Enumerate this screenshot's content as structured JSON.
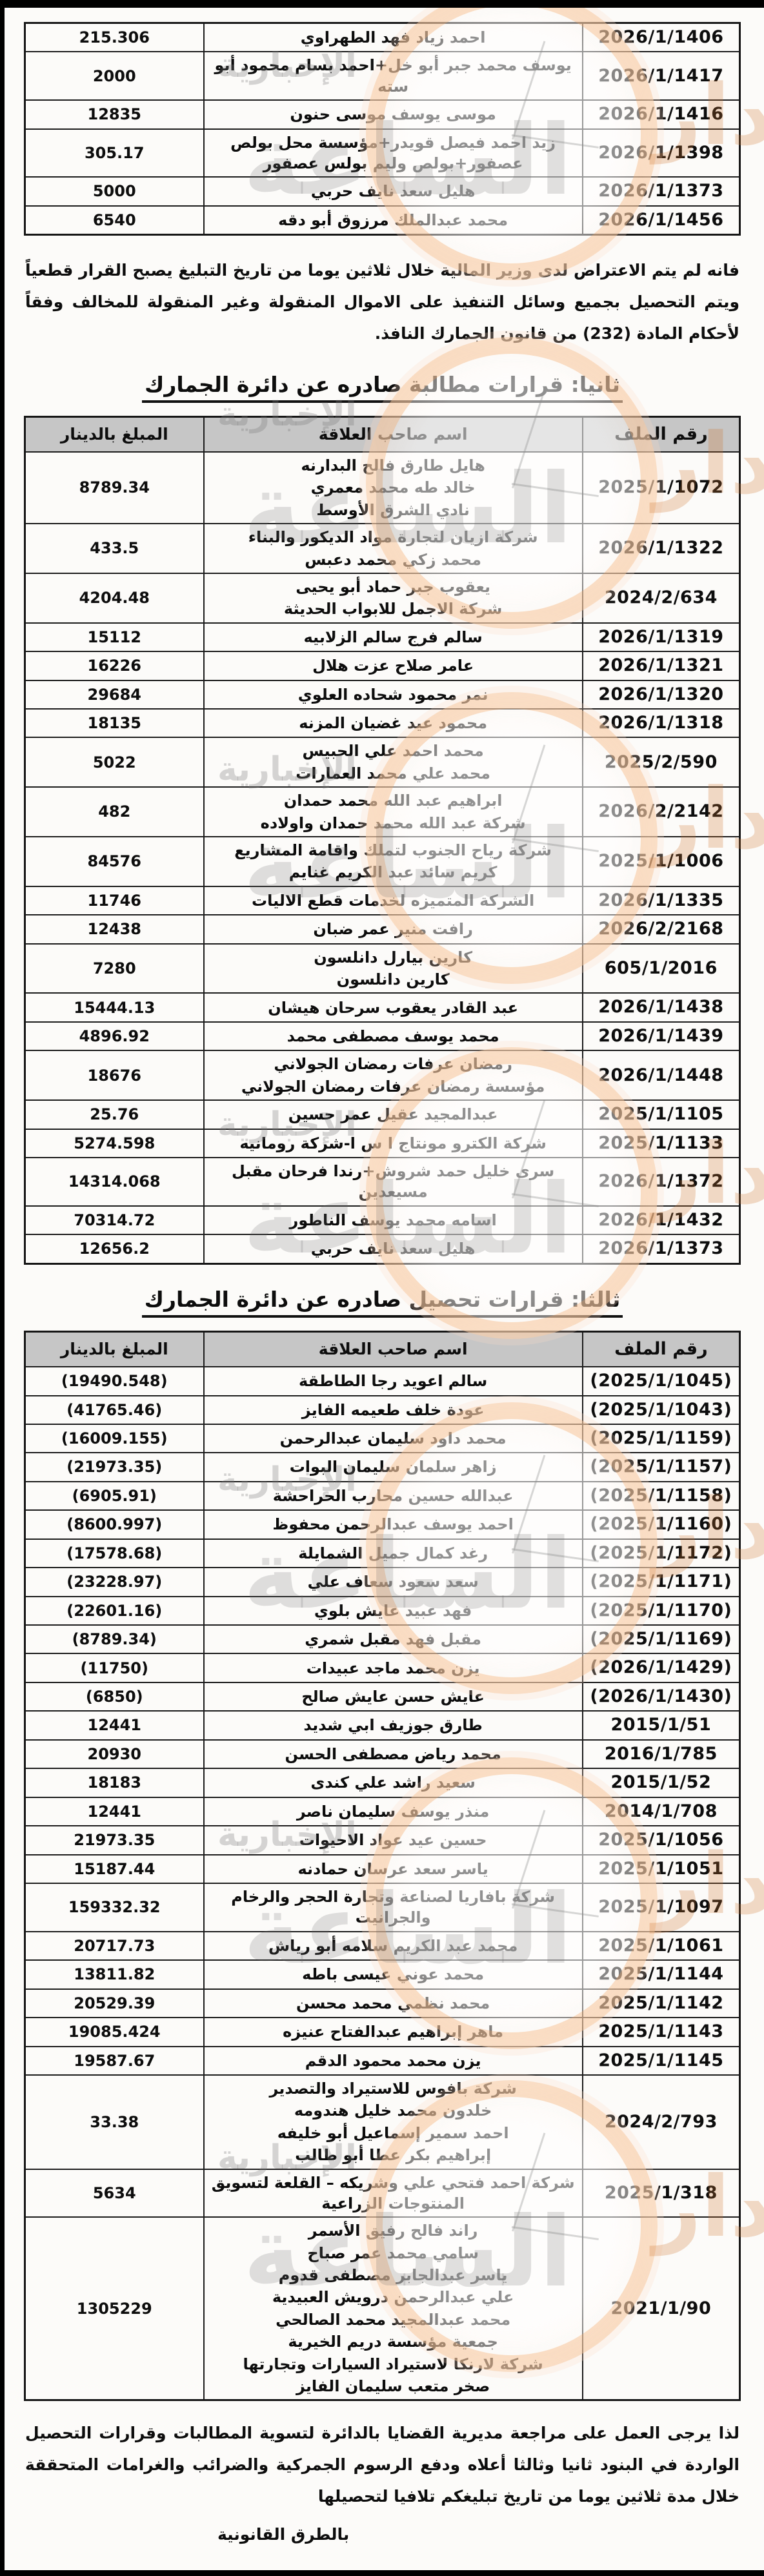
{
  "document": {
    "table_headers": {
      "file": "رقم الملف",
      "name": "اسم صاحب العلاقة",
      "amount": "المبلغ بالدينار"
    },
    "section1": {
      "rows": [
        {
          "amount": "215.306",
          "names": [
            "احمد زياد فهد الطهراوي"
          ],
          "file": "2026/1/1406"
        },
        {
          "amount": "2000",
          "names": [
            "يوسف محمد جبر أبو خل+احمد بسام محمود أبو سته"
          ],
          "file": "2026/1/1417"
        },
        {
          "amount": "12835",
          "names": [
            "موسى يوسف موسى حنون"
          ],
          "file": "2026/1/1416"
        },
        {
          "amount": "305.17",
          "names": [
            "زيد احمد فيصل قويدر+مؤسسة محل بولص عصفور+بولص وليم بولس عصفور"
          ],
          "file": "2026/1/1398"
        },
        {
          "amount": "5000",
          "names": [
            "هليل سعد نايف حربي"
          ],
          "file": "2026/1/1373"
        },
        {
          "amount": "6540",
          "names": [
            "محمد عبدالملك مرزوق أبو دقه"
          ],
          "file": "2026/1/1456"
        }
      ]
    },
    "paragraph_decision": "فانه لم يتم الاعتراض لدى وزير المالية خلال ثلاثين يوما من تاريخ التبليغ يصبح القرار قطعياً ويتم التحصيل بجميع وسائل التنفيذ على الاموال المنقولة وغير المنقولة للمخالف وفقاً لأحكام المادة (232) من قانون الجمارك النافذ.",
    "section2": {
      "heading": "ثانيا: قرارات مطالبة صادره عن دائرة الجمارك",
      "rows": [
        {
          "amount": "8789.34",
          "names": [
            "هايل طارق فالح البدارنه",
            "خالد طه محمد معمري",
            "نادي الشرق الأوسط"
          ],
          "file": "2025/1/1072"
        },
        {
          "amount": "433.5",
          "names": [
            "شركة ازيان لتجارة مواد الديكور والبناء",
            "محمد زكي محمد دعبس"
          ],
          "file": "2026/1/1322"
        },
        {
          "amount": "4204.48",
          "names": [
            "يعقوب جبر حماد أبو يحيى",
            "شركة الاجمل للابواب الحديثة"
          ],
          "file": "2024/2/634"
        },
        {
          "amount": "15112",
          "names": [
            "سالم فرج سالم الزلابيه"
          ],
          "file": "2026/1/1319"
        },
        {
          "amount": "16226",
          "names": [
            "عامر صلاح عزت هلال"
          ],
          "file": "2026/1/1321"
        },
        {
          "amount": "29684",
          "names": [
            "نمر محمود شحاده العلوي"
          ],
          "file": "2026/1/1320"
        },
        {
          "amount": "18135",
          "names": [
            "محمود عيد غضيان المزنه"
          ],
          "file": "2026/1/1318"
        },
        {
          "amount": "5022",
          "names": [
            "محمد احمد علي الحبيس",
            "محمد علي محمد العمارات"
          ],
          "file": "2025/2/590"
        },
        {
          "amount": "482",
          "names": [
            "ابراهيم عبد الله محمد حمدان",
            "شركة عبد الله محمد حمدان واولاده"
          ],
          "file": "2026/2/2142"
        },
        {
          "amount": "84576",
          "names": [
            "شركة رياح الجنوب لتملك واقامة المشاريع",
            "كريم سائد عبد الكريم غنايم"
          ],
          "file": "2025/1/1006"
        },
        {
          "amount": "11746",
          "names": [
            "الشركة المتميزه لخدمات قطع الاليات"
          ],
          "file": "2026/1/1335"
        },
        {
          "amount": "12438",
          "names": [
            "رافت منير عمر ضبان"
          ],
          "file": "2026/2/2168"
        },
        {
          "amount": "7280",
          "names": [
            "كارين بيارل دانلسون",
            "كارين دانلسون"
          ],
          "file": "605/1/2016"
        },
        {
          "amount": "15444.13",
          "names": [
            "عبد القادر يعقوب سرحان هيشان"
          ],
          "file": "2026/1/1438"
        },
        {
          "amount": "4896.92",
          "names": [
            "محمد يوسف مصطفى محمد"
          ],
          "file": "2026/1/1439"
        },
        {
          "amount": "18676",
          "names": [
            "رمضان عرفات رمضان الجولاني",
            "مؤسسة رمضان عرفات رمضان الجولاني"
          ],
          "file": "2026/1/1448"
        },
        {
          "amount": "25.76",
          "names": [
            "عبدالمجيد عقيل عمر حسين"
          ],
          "file": "2025/1/1105"
        },
        {
          "amount": "5274.598",
          "names": [
            "شركة الكترو مونتاج ا س ا-شركة رومانيه"
          ],
          "file": "2025/1/1133"
        },
        {
          "amount": "14314.068",
          "names": [
            "سرى خليل حمد شروش+رندا فرحان مقبل مسيعدين"
          ],
          "file": "2026/1/1372"
        },
        {
          "amount": "70314.72",
          "names": [
            "اسامه محمد يوسف الناطور"
          ],
          "file": "2026/1/1432"
        },
        {
          "amount": "12656.2",
          "names": [
            "هليل سعد نايف حربي"
          ],
          "file": "2026/1/1373"
        }
      ]
    },
    "section3": {
      "heading": "ثالثا: قرارات تحصيل صادره عن دائرة الجمارك",
      "rows": [
        {
          "amount": "(19490.548)",
          "names": [
            "سالم اعويد رجا الطاطقة"
          ],
          "file": "(2025/1/1045)"
        },
        {
          "amount": "(41765.46)",
          "names": [
            "عودة خلف طعيمه الفايز"
          ],
          "file": "(2025/1/1043)"
        },
        {
          "amount": "(16009.155)",
          "names": [
            "محمد داود سليمان عبدالرحمن"
          ],
          "file": "(2025/1/1159)"
        },
        {
          "amount": "(21973.35)",
          "names": [
            "زاهر سلمان سليمان البوات"
          ],
          "file": "(2025/1/1157)"
        },
        {
          "amount": "(6905.91)",
          "names": [
            "عبدالله حسين محارب الحراحشة"
          ],
          "file": "(2025/1/1158)"
        },
        {
          "amount": "(8600.997)",
          "names": [
            "احمد يوسف عبدالرحمن محفوظ"
          ],
          "file": "(2025/1/1160)"
        },
        {
          "amount": "(17578.68)",
          "names": [
            "رغد كمال جميل الشمايلة"
          ],
          "file": "(2025/1/1172)"
        },
        {
          "amount": "(23228.97)",
          "names": [
            "سعد سعود سعاف علي"
          ],
          "file": "(2025/1/1171)"
        },
        {
          "amount": "(22601.16)",
          "names": [
            "فهد عبيد عايش بلوي"
          ],
          "file": "(2025/1/1170)"
        },
        {
          "amount": "(8789.34)",
          "names": [
            "مقبل فهد مقبل شمري"
          ],
          "file": "(2025/1/1169)"
        },
        {
          "amount": "(11750)",
          "names": [
            "يزن محمد ماجد عبيدات"
          ],
          "file": "(2026/1/1429)"
        },
        {
          "amount": "(6850)",
          "names": [
            "عايش حسن عايش صالح"
          ],
          "file": "(2026/1/1430)"
        },
        {
          "amount": "12441",
          "names": [
            "طارق جوزيف ابي شديد"
          ],
          "file": "2015/1/51"
        },
        {
          "amount": "20930",
          "names": [
            "محمد رياض مصطفى الحسن"
          ],
          "file": "2016/1/785"
        },
        {
          "amount": "18183",
          "names": [
            "سعيد راشد علي كندى"
          ],
          "file": "2015/1/52"
        },
        {
          "amount": "12441",
          "names": [
            "منذر يوسف سليمان ناصر"
          ],
          "file": "2014/1/708"
        },
        {
          "amount": "21973.35",
          "names": [
            "حسين عيد عواد الاحيوات"
          ],
          "file": "2025/1/1056"
        },
        {
          "amount": "15187.44",
          "names": [
            "ياسر سعد عرسان حمادنه"
          ],
          "file": "2025/1/1051"
        },
        {
          "amount": "159332.32",
          "names": [
            "شركة بافاريا لصناعة وتجارة الحجر والرخام والجرانيت"
          ],
          "file": "2025/1/1097"
        },
        {
          "amount": "20717.73",
          "names": [
            "محمد عبد الكريم سلامه أبو رياش"
          ],
          "file": "2025/1/1061"
        },
        {
          "amount": "13811.82",
          "names": [
            "محمد عوني عيسى باطه"
          ],
          "file": "2025/1/1144"
        },
        {
          "amount": "20529.39",
          "names": [
            "محمد نظمي محمد محسن"
          ],
          "file": "2025/1/1142"
        },
        {
          "amount": "19085.424",
          "names": [
            "ماهر إبراهيم عبدالفتاح عنيزه"
          ],
          "file": "2025/1/1143"
        },
        {
          "amount": "19587.67",
          "names": [
            "يزن محمد محمود الدقم"
          ],
          "file": "2025/1/1145"
        },
        {
          "amount": "33.38",
          "names": [
            "شركة بافوس للاستيراد والتصدير",
            "خلدون محمد خليل هندومه",
            "احمد سمير إسماعيل أبو خليفه",
            "إبراهيم بكر عطا أبو طالب"
          ],
          "file": "2024/2/793"
        },
        {
          "amount": "5634",
          "names": [
            "شركة احمد فتحي علي وشريكه – القلعة لتسويق المنتوجات الزراعية"
          ],
          "file": "2025/1/318"
        },
        {
          "amount": "1305229",
          "names": [
            "راند فالح رفيق الأسمر",
            "سامي محمد عمر صباح",
            "ياسر عبدالجابر مصطفى قدوم",
            "علي عبدالرحمن درويش العبيدية",
            "محمد عبدالمجيد محمد الصالحي",
            "جمعية مؤسسة دريم الخيرية",
            "شركة لارنكا لاستيراد السيارات وتجارتها",
            "صخر متعب سليمان الفايز"
          ],
          "file": "2021/1/90"
        }
      ]
    },
    "closing": {
      "line1": "لذا يرجى العمل على مراجعة مديرية القضايا بالدائرة لتسوية المطالبات وقرارات التحصيل الواردة في البنود ثانيا وثالثا أعلاه  ودفع الرسوم الجمركية والضرائب والغرامات المتحققة  خلال مدة ثلاثين يوما من تاريخ تبليغكم تلافيا لتحصيلها",
      "line2": "بالطرق القانونية"
    },
    "watermark": {
      "word_main": "الساعة",
      "word_right": "مدار",
      "word_sub": "الإخبارية",
      "ring_color": "#f4a362"
    }
  }
}
